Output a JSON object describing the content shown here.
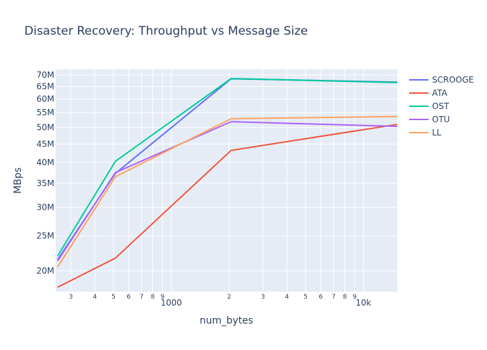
{
  "chart_data": {
    "type": "line",
    "title": "Disaster Recovery: Throughput vs Message Size",
    "xlabel": "num_bytes",
    "ylabel": "MBps",
    "x_scale": "log",
    "y_scale": "log",
    "xlim": [
      250,
      15000
    ],
    "ylim": [
      17500000,
      72500000
    ],
    "x": [
      256,
      512,
      2048,
      16384
    ],
    "x_tick_labels": [
      {
        "value": 300,
        "label": "3"
      },
      {
        "value": 400,
        "label": "4"
      },
      {
        "value": 500,
        "label": "5"
      },
      {
        "value": 600,
        "label": "6"
      },
      {
        "value": 700,
        "label": "7"
      },
      {
        "value": 800,
        "label": "8"
      },
      {
        "value": 900,
        "label": "9"
      },
      {
        "value": 1000,
        "label": "1000"
      },
      {
        "value": 2000,
        "label": "2"
      },
      {
        "value": 3000,
        "label": "3"
      },
      {
        "value": 4000,
        "label": "4"
      },
      {
        "value": 5000,
        "label": "5"
      },
      {
        "value": 6000,
        "label": "6"
      },
      {
        "value": 7000,
        "label": "7"
      },
      {
        "value": 8000,
        "label": "8"
      },
      {
        "value": 9000,
        "label": "9"
      },
      {
        "value": 10000,
        "label": "10k"
      }
    ],
    "y_tick_labels": [
      {
        "value": 20000000,
        "label": "20M"
      },
      {
        "value": 25000000,
        "label": "25M"
      },
      {
        "value": 30000000,
        "label": "30M"
      },
      {
        "value": 35000000,
        "label": "35M"
      },
      {
        "value": 40000000,
        "label": "40M"
      },
      {
        "value": 45000000,
        "label": "45M"
      },
      {
        "value": 50000000,
        "label": "50M"
      },
      {
        "value": 55000000,
        "label": "55M"
      },
      {
        "value": 60000000,
        "label": "60M"
      },
      {
        "value": 65000000,
        "label": "65M"
      },
      {
        "value": 70000000,
        "label": "70M"
      }
    ],
    "grid": true,
    "legend_position": "right",
    "colors": {
      "plot_bg": "#E5ECF6",
      "grid": "#ffffff",
      "title": "#2a3f5f",
      "text": "#2a3f5f"
    },
    "series": [
      {
        "name": "SCROOGE",
        "color": "#636efa",
        "values": [
          21500000,
          37300000,
          68300000,
          66800000
        ]
      },
      {
        "name": "ATA",
        "color": "#EF553B",
        "values": [
          18000000,
          21700000,
          43200000,
          51400000
        ]
      },
      {
        "name": "OST",
        "color": "#00cc96",
        "values": [
          22000000,
          40300000,
          68400000,
          66600000
        ]
      },
      {
        "name": "OTU",
        "color": "#ab63fa",
        "values": [
          21300000,
          37500000,
          51900000,
          50300000
        ]
      },
      {
        "name": "LL",
        "color": "#FFA15A",
        "values": [
          20500000,
          36500000,
          52900000,
          53700000
        ]
      }
    ]
  }
}
